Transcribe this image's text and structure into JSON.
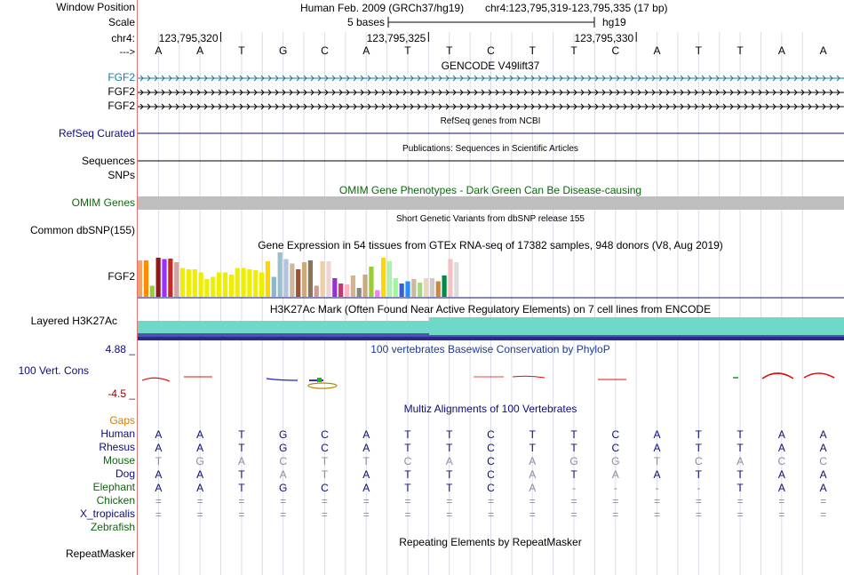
{
  "ruler": {
    "window_position_label": "Window Position",
    "scale_label": "Scale",
    "chr_label": "chr4:",
    "strand_label": "--->",
    "assembly_text": "Human Feb. 2009 (GRCh37/hg19)",
    "position_text": "chr4:123,795,319-123,795,335 (17 bp)",
    "scale_text": "5 bases",
    "db_text": "hg19",
    "coordinates": [
      "123,795,320",
      "123,795,325",
      "123,795,330"
    ]
  },
  "sequence": [
    "A",
    "A",
    "T",
    "G",
    "C",
    "A",
    "T",
    "T",
    "C",
    "T",
    "T",
    "C",
    "A",
    "T",
    "T",
    "A",
    "A"
  ],
  "gencode": {
    "title": "GENCODE V49lift37",
    "tracks": [
      {
        "label": "FGF2",
        "color": "#1a7a9a"
      },
      {
        "label": "FGF2",
        "color": "#000000"
      },
      {
        "label": "FGF2",
        "color": "#000000"
      }
    ]
  },
  "refseq": {
    "title": "RefSeq genes from NCBI",
    "label": "RefSeq Curated",
    "color": "#0c0c78"
  },
  "publications": {
    "title": "Publications: Sequences in Scientific Articles",
    "sequences_label": "Sequences",
    "snps_label": "SNPs"
  },
  "omim": {
    "title": "OMIM Gene Phenotypes - Dark Green Can Be Disease-causing",
    "label": "OMIM Genes",
    "color": "#0d660d",
    "bar_color": "#bebebe"
  },
  "dbsnp": {
    "title": "Short Genetic Variants from dbSNP release 155",
    "label": "Common dbSNP(155)"
  },
  "gtex": {
    "title": "Gene Expression in 54 tissues from GTEx RNA-seq of 17382 samples, 948 donors (V8, Aug 2019)",
    "label": "FGF2",
    "bars": [
      {
        "color": "#f4a460",
        "value": 0.82
      },
      {
        "color": "#ff8c00",
        "value": 0.82
      },
      {
        "color": "#9acd32",
        "value": 0.25
      },
      {
        "color": "#8b1a1a",
        "value": 0.88
      },
      {
        "color": "#9b30ff",
        "value": 0.85
      },
      {
        "color": "#cd2626",
        "value": 0.86
      },
      {
        "color": "#d2a5a5",
        "value": 0.78
      },
      {
        "color": "#eeee00",
        "value": 0.65
      },
      {
        "color": "#eeee00",
        "value": 0.62
      },
      {
        "color": "#eeee00",
        "value": 0.62
      },
      {
        "color": "#eeee00",
        "value": 0.55
      },
      {
        "color": "#eeee00",
        "value": 0.4
      },
      {
        "color": "#eeee00",
        "value": 0.45
      },
      {
        "color": "#eeee00",
        "value": 0.55
      },
      {
        "color": "#eeee00",
        "value": 0.55
      },
      {
        "color": "#eeee00",
        "value": 0.5
      },
      {
        "color": "#eeee00",
        "value": 0.65
      },
      {
        "color": "#eeee00",
        "value": 0.65
      },
      {
        "color": "#eeee00",
        "value": 0.62
      },
      {
        "color": "#eeee00",
        "value": 0.6
      },
      {
        "color": "#eeee00",
        "value": 0.55
      },
      {
        "color": "#ffd700",
        "value": 0.8
      },
      {
        "color": "#8db6cd",
        "value": 0.45
      },
      {
        "color": "#9ac0cd",
        "value": 1.0
      },
      {
        "color": "#b0c4de",
        "value": 0.85
      },
      {
        "color": "#cdb79e",
        "value": 0.75
      },
      {
        "color": "#a0522d",
        "value": 0.62
      },
      {
        "color": "#cdaa7d",
        "value": 0.78
      },
      {
        "color": "#8b7355",
        "value": 0.82
      },
      {
        "color": "#cd9b9b",
        "value": 0.25
      },
      {
        "color": "#eecfa1",
        "value": 0.8
      },
      {
        "color": "#eed5d2",
        "value": 0.8
      },
      {
        "color": "#9932cc",
        "value": 0.42
      },
      {
        "color": "#cd3278",
        "value": 0.3
      },
      {
        "color": "#ffb6c1",
        "value": 0.28
      },
      {
        "color": "#d2b48c",
        "value": 0.48
      },
      {
        "color": "#8b8682",
        "value": 0.2
      },
      {
        "color": "#cdaa7d",
        "value": 0.5
      },
      {
        "color": "#9acd32",
        "value": 0.68
      },
      {
        "color": "#ee82ee",
        "value": 0.15
      },
      {
        "color": "#ffd700",
        "value": 0.88
      },
      {
        "color": "#b4eeb4",
        "value": 0.8
      },
      {
        "color": "#98fb98",
        "value": 0.42
      },
      {
        "color": "#3a5fcd",
        "value": 0.3
      },
      {
        "color": "#1e90ff",
        "value": 0.35
      },
      {
        "color": "#cdb79e",
        "value": 0.4
      },
      {
        "color": "#a6d785",
        "value": 0.32
      },
      {
        "color": "#eed5b7",
        "value": 0.42
      },
      {
        "color": "#cdc9c9",
        "value": 0.42
      },
      {
        "color": "#cd853f",
        "value": 0.35
      },
      {
        "color": "#008b45",
        "value": 0.48
      },
      {
        "color": "#f4c2c2",
        "value": 0.85
      },
      {
        "color": "#dcdcdc",
        "value": 0.78
      }
    ]
  },
  "h3k27ac": {
    "title": "H3K27Ac Mark (Often Found Near Active Regulatory Elements) on 7 cell lines from ENCODE",
    "label": "Layered H3K27Ac",
    "colors": [
      "#6fd9c8",
      "#5050b5",
      "#2a2a8a"
    ]
  },
  "phylop": {
    "title": "100 vertebrates Basewise Conservation by PhyloP",
    "label": "100 Vert. Cons",
    "ymax": "4.88 _",
    "ymin": "-4.5 _",
    "color": "#1a3a9a"
  },
  "multiz": {
    "title": "Multiz Alignments of 100 Vertebrates",
    "gaps_label": "Gaps",
    "species": [
      {
        "name": "Human",
        "color": "#0c0c78",
        "bases": [
          "A",
          "A",
          "T",
          "G",
          "C",
          "A",
          "T",
          "T",
          "C",
          "T",
          "T",
          "C",
          "A",
          "T",
          "T",
          "A",
          "A"
        ],
        "dim": [
          false,
          false,
          false,
          false,
          false,
          false,
          false,
          false,
          false,
          false,
          false,
          false,
          false,
          false,
          false,
          false,
          false
        ]
      },
      {
        "name": "Rhesus",
        "color": "#0c0c78",
        "bases": [
          "A",
          "A",
          "T",
          "G",
          "C",
          "A",
          "T",
          "T",
          "C",
          "T",
          "T",
          "C",
          "A",
          "T",
          "T",
          "A",
          "A"
        ],
        "dim": [
          false,
          false,
          false,
          false,
          false,
          false,
          false,
          false,
          false,
          false,
          false,
          false,
          false,
          false,
          false,
          false,
          false
        ]
      },
      {
        "name": "Mouse",
        "color": "#0d660d",
        "bases": [
          "T",
          "G",
          "A",
          "C",
          "T",
          "T",
          "C",
          "A",
          "C",
          "A",
          "G",
          "G",
          "T",
          "C",
          "A",
          "C",
          "C"
        ],
        "dim": [
          true,
          true,
          true,
          true,
          true,
          true,
          true,
          true,
          false,
          true,
          true,
          true,
          true,
          true,
          true,
          true,
          true
        ]
      },
      {
        "name": "Dog",
        "color": "#0c0c78",
        "bases": [
          "A",
          "A",
          "T",
          "A",
          "T",
          "A",
          "T",
          "T",
          "C",
          "A",
          "T",
          "A",
          "A",
          "T",
          "T",
          "A",
          "A"
        ],
        "dim": [
          false,
          false,
          false,
          true,
          true,
          false,
          false,
          false,
          false,
          true,
          false,
          true,
          false,
          false,
          false,
          false,
          false
        ]
      },
      {
        "name": "Elephant",
        "color": "#0d660d",
        "bases": [
          "A",
          "A",
          "T",
          "G",
          "C",
          "A",
          "T",
          "T",
          "C",
          "A",
          "-",
          "-",
          "-",
          "-",
          "T",
          "A",
          "A"
        ],
        "dim": [
          false,
          false,
          false,
          false,
          false,
          false,
          false,
          false,
          false,
          true,
          true,
          true,
          true,
          true,
          false,
          false,
          false
        ]
      },
      {
        "name": "Chicken",
        "color": "#0d660d",
        "bases": [
          "=",
          "=",
          "=",
          "=",
          "=",
          "=",
          "=",
          "=",
          "=",
          "=",
          "=",
          "=",
          "=",
          "=",
          "=",
          "=",
          "="
        ],
        "dim": [
          true,
          true,
          true,
          true,
          true,
          true,
          true,
          true,
          true,
          true,
          true,
          true,
          true,
          true,
          true,
          true,
          true
        ]
      },
      {
        "name": "X_tropicalis",
        "color": "#0c0c78",
        "bases": [
          "=",
          "=",
          "=",
          "=",
          "=",
          "=",
          "=",
          "=",
          "=",
          "=",
          "=",
          "=",
          "=",
          "=",
          "=",
          "=",
          "="
        ],
        "dim": [
          true,
          true,
          true,
          true,
          true,
          true,
          true,
          true,
          true,
          true,
          true,
          true,
          true,
          true,
          true,
          true,
          true
        ]
      },
      {
        "name": "Zebrafish",
        "color": "#0d660d",
        "bases": [
          "",
          "",
          "",
          "",
          "",
          "",
          "",
          "",
          "",
          "",
          "",
          "",
          "",
          "",
          "",
          "",
          ""
        ],
        "dim": [
          true,
          true,
          true,
          true,
          true,
          true,
          true,
          true,
          true,
          true,
          true,
          true,
          true,
          true,
          true,
          true,
          true
        ]
      }
    ]
  },
  "repeatmasker": {
    "title": "Repeating Elements by RepeatMasker",
    "label": "RepeatMasker"
  }
}
